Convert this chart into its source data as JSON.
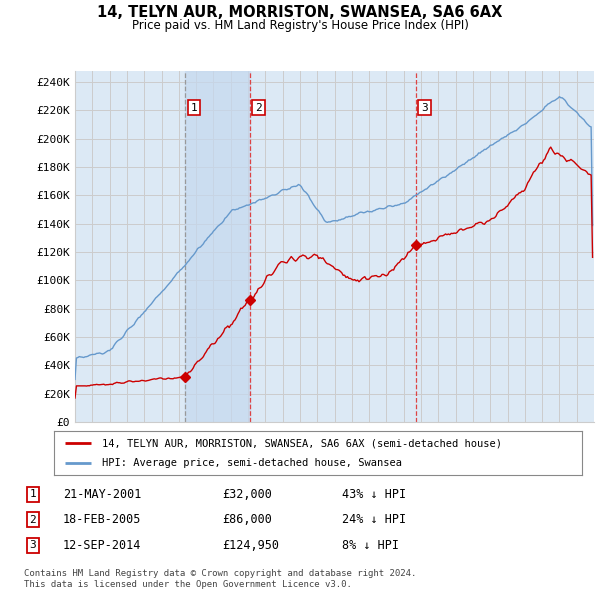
{
  "title": "14, TELYN AUR, MORRISTON, SWANSEA, SA6 6AX",
  "subtitle": "Price paid vs. HM Land Registry's House Price Index (HPI)",
  "yticks": [
    0,
    20000,
    40000,
    60000,
    80000,
    100000,
    120000,
    140000,
    160000,
    180000,
    200000,
    220000,
    240000
  ],
  "ytick_labels": [
    "£0",
    "£20K",
    "£40K",
    "£60K",
    "£80K",
    "£100K",
    "£120K",
    "£140K",
    "£160K",
    "£180K",
    "£200K",
    "£220K",
    "£240K"
  ],
  "transactions": [
    {
      "date_year": 2001.38,
      "price": 32000,
      "label": "1"
    },
    {
      "date_year": 2005.12,
      "price": 86000,
      "label": "2"
    },
    {
      "date_year": 2014.7,
      "price": 124950,
      "label": "3"
    }
  ],
  "legend_line1": "14, TELYN AUR, MORRISTON, SWANSEA, SA6 6AX (semi-detached house)",
  "legend_line2": "HPI: Average price, semi-detached house, Swansea",
  "table_rows": [
    {
      "num": "1",
      "date": "21-MAY-2001",
      "price": "£32,000",
      "pct": "43% ↓ HPI"
    },
    {
      "num": "2",
      "date": "18-FEB-2005",
      "price": "£86,000",
      "pct": "24% ↓ HPI"
    },
    {
      "num": "3",
      "date": "12-SEP-2014",
      "price": "£124,950",
      "pct": "8% ↓ HPI"
    }
  ],
  "footer": "Contains HM Land Registry data © Crown copyright and database right 2024.\nThis data is licensed under the Open Government Licence v3.0.",
  "house_color": "#cc0000",
  "hpi_color": "#6699cc",
  "vline1_color": "#999999",
  "vline23_color": "#dd4444",
  "grid_color": "#cccccc",
  "chart_bg": "#dce9f5",
  "fig_bg": "#ffffff",
  "shade_color": "#c5d8ee"
}
